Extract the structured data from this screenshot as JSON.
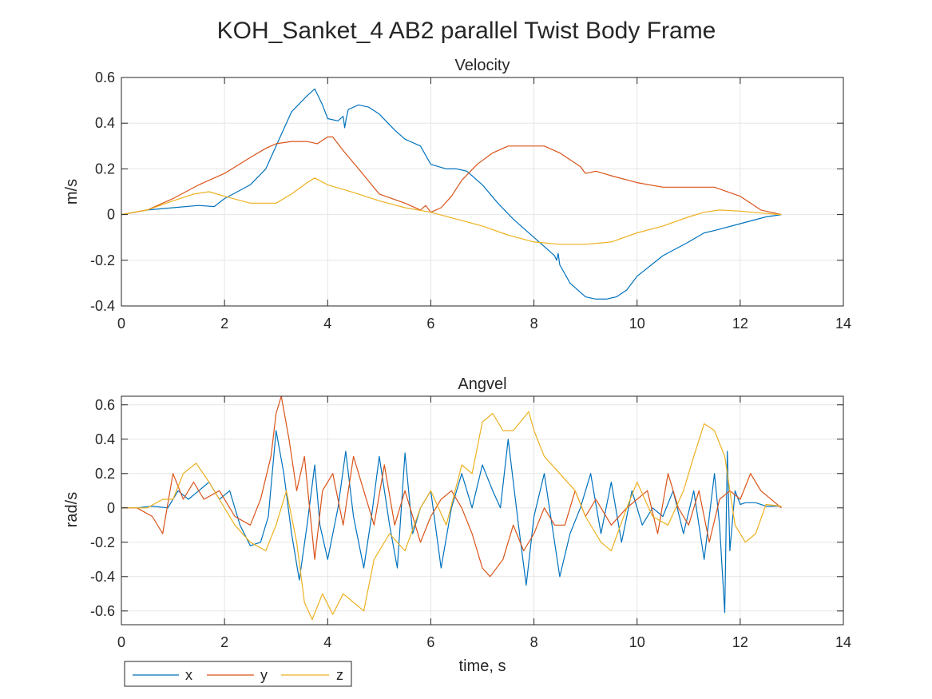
{
  "figure": {
    "title": "KOH_Sanket_4 AB2 parallel Twist Body Frame"
  },
  "colors": {
    "x": "#0072BD",
    "y": "#D95319",
    "z": "#EDB120",
    "grid": "#e5e5e5",
    "axis": "#262626"
  },
  "legend": {
    "entries": [
      "x",
      "y",
      "z"
    ],
    "location": "bottom-left"
  },
  "chart_data": [
    {
      "type": "line",
      "title": "Velocity",
      "xlabel": "",
      "ylabel": "m/s",
      "xlim": [
        0,
        14
      ],
      "ylim": [
        -0.4,
        0.6
      ],
      "xticks": [
        0,
        2,
        4,
        6,
        8,
        10,
        12,
        14
      ],
      "yticks": [
        -0.4,
        -0.2,
        0,
        0.2,
        0.4,
        0.6
      ],
      "grid": true,
      "series": [
        {
          "name": "x",
          "x": [
            0,
            0.5,
            1,
            1.5,
            1.8,
            2,
            2.5,
            2.8,
            3,
            3.3,
            3.6,
            3.75,
            3.9,
            4,
            4.2,
            4.3,
            4.33,
            4.36,
            4.4,
            4.6,
            4.8,
            5,
            5.3,
            5.5,
            5.8,
            6,
            6.3,
            6.5,
            6.7,
            7,
            7.3,
            7.6,
            8,
            8.2,
            8.4,
            8.44,
            8.47,
            8.5,
            8.7,
            9,
            9.2,
            9.4,
            9.6,
            9.8,
            10,
            10.5,
            11,
            11.3,
            11.5,
            12,
            12.5,
            12.8
          ],
          "y": [
            0,
            0.02,
            0.03,
            0.04,
            0.035,
            0.07,
            0.13,
            0.2,
            0.3,
            0.45,
            0.52,
            0.55,
            0.48,
            0.42,
            0.41,
            0.43,
            0.38,
            0.42,
            0.46,
            0.48,
            0.47,
            0.44,
            0.37,
            0.33,
            0.3,
            0.22,
            0.2,
            0.2,
            0.19,
            0.13,
            0.05,
            -0.02,
            -0.1,
            -0.14,
            -0.18,
            -0.2,
            -0.17,
            -0.22,
            -0.3,
            -0.36,
            -0.37,
            -0.37,
            -0.36,
            -0.33,
            -0.27,
            -0.18,
            -0.12,
            -0.08,
            -0.07,
            -0.04,
            -0.01,
            0
          ]
        },
        {
          "name": "y",
          "x": [
            0,
            0.5,
            1,
            1.5,
            2,
            2.5,
            2.8,
            3,
            3.3,
            3.6,
            3.8,
            4,
            4.1,
            4.3,
            4.6,
            5,
            5.5,
            5.8,
            5.9,
            6,
            6.2,
            6.4,
            6.6,
            6.9,
            7.2,
            7.5,
            7.8,
            8,
            8.2,
            8.5,
            8.9,
            9,
            9.2,
            9.5,
            10,
            10.5,
            11,
            11.5,
            12,
            12.2,
            12.4,
            12.8
          ],
          "y": [
            0,
            0.02,
            0.07,
            0.13,
            0.18,
            0.25,
            0.29,
            0.31,
            0.32,
            0.32,
            0.31,
            0.34,
            0.34,
            0.28,
            0.2,
            0.09,
            0.05,
            0.02,
            0.04,
            0.01,
            0.03,
            0.08,
            0.15,
            0.22,
            0.27,
            0.3,
            0.3,
            0.3,
            0.3,
            0.27,
            0.21,
            0.18,
            0.19,
            0.17,
            0.14,
            0.12,
            0.12,
            0.12,
            0.08,
            0.05,
            0.02,
            0
          ]
        },
        {
          "name": "z",
          "x": [
            0,
            0.5,
            1,
            1.4,
            1.7,
            2,
            2.5,
            3,
            3.3,
            3.6,
            3.75,
            4,
            4.3,
            4.6,
            5,
            5.5,
            6,
            6.5,
            7,
            7.5,
            8,
            8.5,
            9,
            9.5,
            10,
            10.5,
            11,
            11.3,
            11.6,
            12,
            12.5,
            12.8
          ],
          "y": [
            0,
            0.02,
            0.06,
            0.09,
            0.1,
            0.08,
            0.05,
            0.05,
            0.09,
            0.14,
            0.16,
            0.13,
            0.11,
            0.09,
            0.06,
            0.03,
            0.01,
            -0.02,
            -0.05,
            -0.09,
            -0.12,
            -0.13,
            -0.13,
            -0.12,
            -0.08,
            -0.05,
            -0.01,
            0.01,
            0.02,
            0.015,
            0.005,
            0
          ]
        }
      ]
    },
    {
      "type": "line",
      "title": "Angvel",
      "xlabel": "time, s",
      "ylabel": "rad/s",
      "xlim": [
        0,
        14
      ],
      "ylim": [
        -0.68,
        0.65
      ],
      "xticks": [
        0,
        2,
        4,
        6,
        8,
        10,
        12,
        14
      ],
      "yticks": [
        -0.6,
        -0.4,
        -0.2,
        0,
        0.2,
        0.4,
        0.6
      ],
      "grid": true,
      "series": [
        {
          "name": "x",
          "x": [
            0,
            0.3,
            0.6,
            0.9,
            1.1,
            1.3,
            1.5,
            1.7,
            1.9,
            2.1,
            2.3,
            2.5,
            2.7,
            2.85,
            3,
            3.15,
            3.3,
            3.45,
            3.6,
            3.75,
            3.85,
            4,
            4.2,
            4.35,
            4.5,
            4.7,
            4.85,
            5,
            5.2,
            5.35,
            5.5,
            5.65,
            5.8,
            6,
            6.2,
            6.4,
            6.6,
            6.8,
            7,
            7.2,
            7.35,
            7.5,
            7.7,
            7.85,
            8,
            8.2,
            8.35,
            8.5,
            8.7,
            8.9,
            9.1,
            9.3,
            9.5,
            9.7,
            9.9,
            10.1,
            10.3,
            10.5,
            10.7,
            10.9,
            11.1,
            11.3,
            11.5,
            11.6,
            11.7,
            11.75,
            11.8,
            11.9,
            12,
            12.1,
            12.3,
            12.5,
            12.8
          ],
          "y": [
            0,
            0,
            0.01,
            0,
            0.1,
            0.05,
            0.1,
            0.15,
            0.05,
            0.1,
            -0.1,
            -0.22,
            -0.2,
            -0.05,
            0.45,
            0.2,
            -0.15,
            -0.42,
            -0.1,
            0.25,
            -0.1,
            -0.3,
            0,
            0.33,
            -0.05,
            -0.35,
            -0.05,
            0.3,
            -0.1,
            -0.35,
            0.32,
            -0.15,
            0,
            0.1,
            -0.35,
            0,
            0.2,
            0,
            0.25,
            0.1,
            0,
            0.4,
            -0.1,
            -0.45,
            -0.05,
            0.2,
            -0.1,
            -0.4,
            -0.15,
            0,
            0.2,
            -0.15,
            0.15,
            -0.2,
            0.1,
            -0.1,
            0,
            -0.05,
            0.1,
            -0.15,
            0.1,
            -0.3,
            0.2,
            -0.1,
            -0.61,
            0.33,
            -0.25,
            0.1,
            0.02,
            0.03,
            0.03,
            0.01,
            0.01
          ]
        },
        {
          "name": "y",
          "x": [
            0,
            0.3,
            0.6,
            0.8,
            1,
            1.2,
            1.4,
            1.6,
            1.9,
            2.2,
            2.5,
            2.7,
            2.9,
            3,
            3.1,
            3.25,
            3.4,
            3.55,
            3.75,
            3.9,
            4.1,
            4.3,
            4.5,
            4.7,
            4.9,
            5.1,
            5.3,
            5.5,
            5.8,
            6,
            6.2,
            6.4,
            6.6,
            6.8,
            7,
            7.15,
            7.4,
            7.6,
            7.8,
            8,
            8.2,
            8.4,
            8.6,
            8.8,
            9,
            9.2,
            9.5,
            9.8,
            10,
            10.2,
            10.4,
            10.6,
            10.8,
            11,
            11.2,
            11.4,
            11.6,
            11.8,
            12,
            12.2,
            12.4,
            12.8
          ],
          "y": [
            0,
            0,
            -0.05,
            -0.15,
            0.2,
            0.05,
            0.15,
            0.05,
            0.1,
            -0.05,
            -0.1,
            0.05,
            0.3,
            0.55,
            0.65,
            0.4,
            0.1,
            0.3,
            -0.3,
            0.1,
            0.2,
            -0.1,
            0.3,
            0.1,
            -0.1,
            0.25,
            -0.1,
            0.1,
            -0.2,
            -0.05,
            0.05,
            0.1,
            0,
            -0.15,
            -0.35,
            -0.4,
            -0.3,
            -0.1,
            -0.25,
            -0.15,
            0,
            -0.1,
            -0.1,
            0.1,
            -0.05,
            0.05,
            -0.1,
            0,
            0.05,
            0.1,
            -0.15,
            0.2,
            0,
            -0.1,
            0.1,
            -0.2,
            0.05,
            0.1,
            0.05,
            0.2,
            0.1,
            0
          ]
        },
        {
          "name": "z",
          "x": [
            0,
            0.5,
            0.8,
            1,
            1.2,
            1.45,
            1.7,
            2,
            2.2,
            2.5,
            2.8,
            3,
            3.2,
            3.4,
            3.55,
            3.7,
            3.9,
            4.1,
            4.3,
            4.5,
            4.7,
            4.9,
            5.2,
            5.5,
            5.8,
            6,
            6.3,
            6.6,
            6.8,
            7,
            7.2,
            7.4,
            7.6,
            7.9,
            8,
            8.2,
            8.5,
            8.8,
            9,
            9.3,
            9.5,
            9.8,
            10,
            10.3,
            10.6,
            10.9,
            11.1,
            11.3,
            11.5,
            11.7,
            11.9,
            12.1,
            12.3,
            12.5,
            12.8
          ],
          "y": [
            0,
            0,
            0.05,
            0.05,
            0.2,
            0.26,
            0.15,
            0,
            -0.1,
            -0.2,
            -0.25,
            -0.1,
            0.1,
            -0.2,
            -0.55,
            -0.65,
            -0.5,
            -0.62,
            -0.5,
            -0.55,
            -0.6,
            -0.3,
            -0.15,
            -0.25,
            0,
            0.1,
            -0.1,
            0.25,
            0.2,
            0.5,
            0.55,
            0.45,
            0.45,
            0.56,
            0.45,
            0.3,
            0.2,
            0.1,
            -0.05,
            -0.2,
            -0.25,
            0,
            0.15,
            -0.05,
            -0.1,
            0.1,
            0.3,
            0.49,
            0.45,
            0.3,
            -0.1,
            -0.2,
            -0.15,
            0.02,
            0.01
          ]
        }
      ]
    }
  ]
}
